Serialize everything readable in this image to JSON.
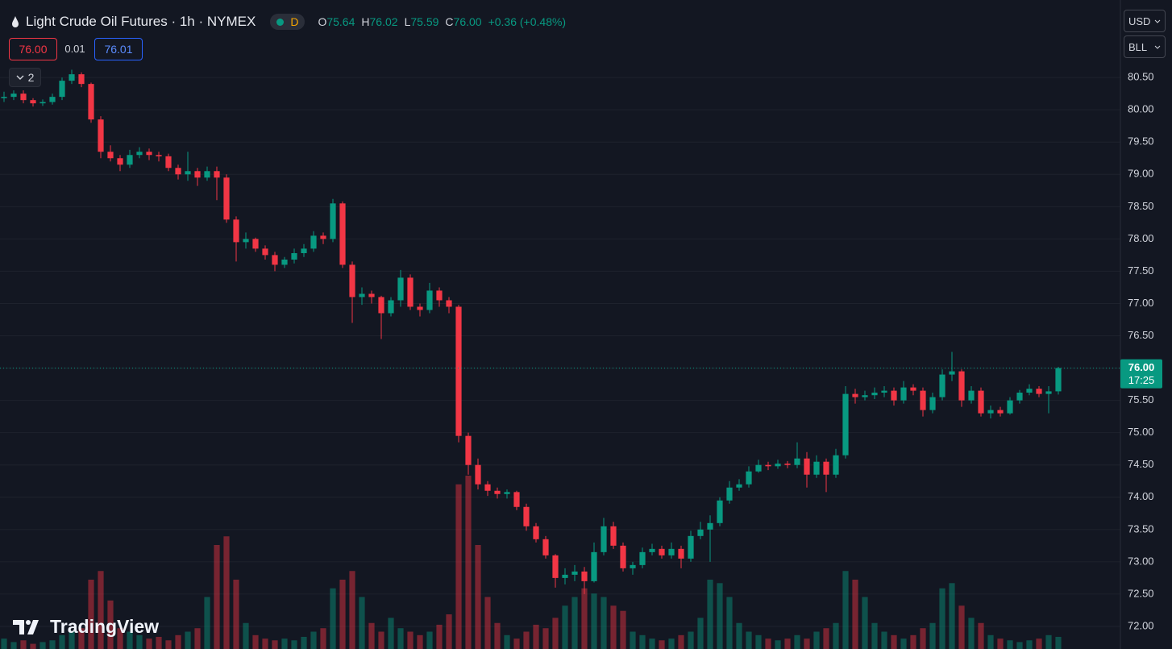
{
  "header": {
    "title": "Light Crude Oil Futures · 1h · NYMEX",
    "badge": "D",
    "ohlc": [
      {
        "label": "O",
        "value": "75.64"
      },
      {
        "label": "H",
        "value": "76.02"
      },
      {
        "label": "L",
        "value": "75.59"
      },
      {
        "label": "C",
        "value": "76.00"
      }
    ],
    "change": "+0.36 (+0.48%)"
  },
  "order": {
    "sell": "76.00",
    "spread": "0.01",
    "buy": "76.01"
  },
  "indicators_toggle": "2",
  "currency": "USD",
  "unit": "BLL",
  "logo": "TradingView",
  "chart_data": {
    "type": "candlestick",
    "open": [
      80.18,
      80.2,
      80.25,
      80.15,
      80.1,
      80.12,
      80.2,
      80.45,
      80.55,
      80.4,
      79.85,
      79.35,
      79.25,
      79.15,
      79.3,
      79.35,
      79.3,
      79.28,
      79.1,
      79.0,
      79.05,
      78.95,
      79.05,
      78.95,
      78.3,
      77.95,
      78.0,
      77.85,
      77.75,
      77.6,
      77.68,
      77.78,
      77.85,
      78.05,
      78.0,
      78.55,
      77.6,
      77.1,
      77.15,
      77.1,
      76.85,
      77.05,
      77.4,
      76.95,
      76.9,
      77.2,
      77.05,
      76.95,
      74.95,
      74.5,
      74.2,
      74.1,
      74.05,
      74.08,
      73.85,
      73.55,
      73.35,
      73.1,
      72.75,
      72.8,
      72.85,
      72.7,
      73.15,
      73.55,
      73.25,
      72.9,
      72.95,
      73.15,
      73.2,
      73.1,
      73.2,
      73.05,
      73.4,
      73.5,
      73.6,
      73.95,
      74.15,
      74.2,
      74.4,
      74.5,
      74.48,
      74.52,
      74.5,
      74.6,
      74.35,
      74.55,
      74.35,
      74.65,
      75.6,
      75.55,
      75.58,
      75.62,
      75.65,
      75.5,
      75.7,
      75.65,
      75.35,
      75.55,
      75.9,
      75.95,
      75.5,
      75.65,
      75.3,
      75.35,
      75.3,
      75.5,
      75.62,
      75.68,
      75.6,
      75.64
    ],
    "high": [
      80.28,
      80.3,
      80.3,
      80.18,
      80.16,
      80.25,
      80.5,
      80.62,
      80.58,
      80.42,
      79.9,
      79.45,
      79.3,
      79.38,
      79.42,
      79.4,
      79.35,
      79.32,
      79.15,
      79.35,
      79.1,
      79.12,
      79.12,
      79.0,
      78.35,
      78.1,
      78.02,
      77.9,
      77.8,
      77.72,
      77.85,
      77.92,
      78.12,
      78.1,
      78.62,
      78.58,
      77.65,
      77.25,
      77.2,
      77.12,
      77.1,
      77.52,
      77.45,
      77.0,
      77.32,
      77.25,
      77.1,
      76.98,
      75.0,
      74.6,
      74.25,
      74.15,
      74.12,
      74.1,
      73.9,
      73.6,
      73.4,
      73.12,
      72.9,
      72.95,
      72.92,
      73.3,
      73.68,
      73.62,
      73.3,
      73.0,
      73.22,
      73.28,
      73.25,
      73.3,
      73.25,
      73.48,
      73.62,
      73.72,
      74.0,
      74.25,
      74.28,
      74.48,
      74.58,
      74.55,
      74.58,
      74.56,
      74.85,
      74.7,
      74.65,
      74.6,
      74.75,
      75.72,
      75.68,
      75.65,
      75.7,
      75.72,
      75.7,
      75.8,
      75.75,
      75.7,
      75.62,
      75.98,
      76.25,
      75.98,
      75.72,
      75.7,
      75.42,
      75.4,
      75.55,
      75.66,
      75.75,
      75.72,
      75.72,
      76.02
    ],
    "low": [
      80.12,
      80.15,
      80.1,
      80.05,
      80.06,
      80.08,
      80.15,
      80.4,
      80.35,
      79.8,
      79.25,
      79.2,
      79.05,
      79.1,
      79.25,
      79.22,
      79.2,
      79.05,
      78.92,
      78.9,
      78.82,
      78.9,
      78.6,
      78.25,
      77.65,
      77.85,
      77.8,
      77.68,
      77.5,
      77.55,
      77.62,
      77.72,
      77.8,
      77.92,
      77.95,
      77.55,
      76.7,
      76.98,
      77.0,
      76.45,
      76.8,
      76.95,
      76.9,
      76.8,
      76.85,
      76.95,
      76.85,
      74.85,
      74.35,
      74.12,
      74.02,
      73.98,
      73.98,
      73.8,
      73.48,
      73.3,
      73.05,
      72.6,
      72.65,
      72.7,
      72.5,
      72.68,
      73.1,
      73.2,
      72.85,
      72.8,
      72.9,
      73.1,
      73.05,
      73.05,
      72.9,
      73.0,
      73.35,
      73.0,
      73.55,
      73.9,
      74.1,
      74.15,
      74.38,
      74.42,
      74.44,
      74.45,
      74.45,
      74.15,
      74.3,
      74.08,
      74.3,
      74.6,
      75.45,
      75.5,
      75.52,
      75.55,
      75.42,
      75.45,
      75.58,
      75.25,
      75.3,
      75.5,
      75.8,
      75.4,
      75.45,
      75.25,
      75.22,
      75.25,
      75.28,
      75.45,
      75.58,
      75.55,
      75.3,
      75.59
    ],
    "close": [
      80.2,
      80.25,
      80.15,
      80.1,
      80.12,
      80.2,
      80.45,
      80.55,
      80.4,
      79.85,
      79.35,
      79.25,
      79.15,
      79.3,
      79.35,
      79.3,
      79.28,
      79.1,
      79.0,
      79.05,
      78.95,
      79.05,
      78.95,
      78.3,
      77.95,
      78.0,
      77.85,
      77.75,
      77.6,
      77.68,
      77.78,
      77.85,
      78.05,
      78.0,
      78.55,
      77.6,
      77.1,
      77.15,
      77.1,
      76.85,
      77.05,
      77.4,
      76.95,
      76.9,
      77.2,
      77.05,
      76.95,
      74.95,
      74.5,
      74.2,
      74.1,
      74.05,
      74.08,
      73.85,
      73.55,
      73.35,
      73.1,
      72.75,
      72.8,
      72.85,
      72.7,
      73.15,
      73.55,
      73.25,
      72.9,
      72.95,
      73.15,
      73.2,
      73.1,
      73.2,
      73.05,
      73.4,
      73.5,
      73.6,
      73.95,
      74.15,
      74.2,
      74.4,
      74.5,
      74.48,
      74.52,
      74.5,
      74.6,
      74.35,
      74.55,
      74.35,
      74.65,
      75.6,
      75.55,
      75.58,
      75.62,
      75.65,
      75.5,
      75.7,
      75.65,
      75.35,
      75.55,
      75.9,
      75.95,
      75.5,
      75.65,
      75.3,
      75.35,
      75.3,
      75.5,
      75.62,
      75.68,
      75.6,
      75.64,
      76.0
    ],
    "volume": [
      6,
      4,
      5,
      3,
      4,
      5,
      8,
      10,
      12,
      40,
      45,
      28,
      12,
      10,
      8,
      6,
      7,
      5,
      8,
      10,
      12,
      30,
      60,
      65,
      40,
      15,
      8,
      6,
      5,
      6,
      5,
      7,
      10,
      12,
      35,
      40,
      45,
      30,
      15,
      10,
      18,
      12,
      10,
      8,
      10,
      14,
      20,
      95,
      100,
      60,
      30,
      15,
      8,
      6,
      10,
      14,
      12,
      18,
      25,
      30,
      35,
      32,
      30,
      25,
      22,
      10,
      8,
      6,
      5,
      6,
      8,
      10,
      18,
      40,
      38,
      30,
      15,
      10,
      8,
      6,
      5,
      6,
      8,
      6,
      10,
      12,
      15,
      45,
      40,
      30,
      15,
      10,
      8,
      6,
      8,
      12,
      15,
      35,
      38,
      25,
      18,
      15,
      8,
      6,
      5,
      4,
      5,
      6,
      8,
      7
    ],
    "ylim": [
      71.65,
      81.7
    ],
    "yticks": [
      {
        "value": 72,
        "label": "72.00"
      },
      {
        "value": 72.5,
        "label": "72.50"
      },
      {
        "value": 73,
        "label": "73.00"
      },
      {
        "value": 73.5,
        "label": "73.50"
      },
      {
        "value": 74,
        "label": "74.00"
      },
      {
        "value": 74.5,
        "label": "74.50"
      },
      {
        "value": 75,
        "label": "75.00"
      },
      {
        "value": 75.5,
        "label": "75.50"
      },
      {
        "value": 76,
        "label": "76.00"
      },
      {
        "value": 76.5,
        "label": "76.50"
      },
      {
        "value": 77,
        "label": "77.00"
      },
      {
        "value": 77.5,
        "label": "77.50"
      },
      {
        "value": 78,
        "label": "78.00"
      },
      {
        "value": 78.5,
        "label": "78.50"
      },
      {
        "value": 79,
        "label": "79.00"
      },
      {
        "value": 79.5,
        "label": "79.50"
      },
      {
        "value": 80,
        "label": "80.00"
      },
      {
        "value": 80.5,
        "label": "80.50"
      }
    ],
    "last_price": {
      "value": 76,
      "label": "76.00"
    },
    "countdown": "17:25",
    "up_color": "#089981",
    "down_color": "#f23645",
    "grid": true
  }
}
